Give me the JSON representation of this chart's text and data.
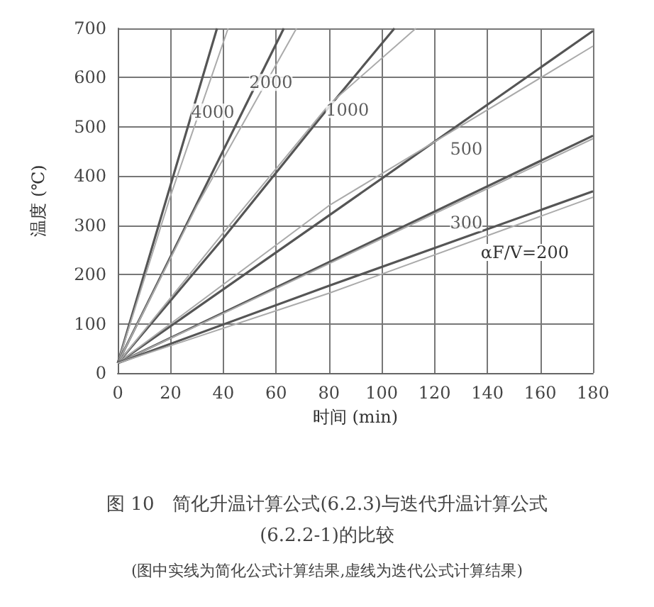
{
  "chart_data": {
    "type": "line",
    "title": "图 10　简化升温计算公式(6.2.3)与迭代升温计算公式(6.2.2-1)的比较",
    "subtitle": "(图中实线为简化公式计算结果,虚线为迭代公式计算结果)",
    "xlabel": "时间 (min)",
    "ylabel": "温度 (℃)",
    "xlim": [
      0,
      180
    ],
    "ylim": [
      0,
      700
    ],
    "xticks": [
      0,
      20,
      40,
      60,
      80,
      100,
      120,
      140,
      160,
      180
    ],
    "yticks": [
      0,
      100,
      200,
      300,
      400,
      500,
      600,
      700
    ],
    "grid": true,
    "marker": "none",
    "series": [
      {
        "color": "#555555",
        "x": [
          0,
          37.6
        ],
        "values": [
          20,
          700
        ]
      },
      {
        "color": "#aaaaaa",
        "x": [
          0,
          20,
          41.8
        ],
        "values": [
          20,
          360,
          700
        ]
      },
      {
        "color": "#555555",
        "x": [
          0,
          62.9
        ],
        "values": [
          20,
          700
        ]
      },
      {
        "color": "#aaaaaa",
        "x": [
          0,
          30,
          67.7
        ],
        "values": [
          20,
          340,
          700
        ]
      },
      {
        "color": "#555555",
        "x": [
          0,
          40,
          80,
          104.8
        ],
        "values": [
          20,
          274,
          540,
          700
        ]
      },
      {
        "color": "#aaaaaa",
        "x": [
          0,
          40,
          80,
          112.9
        ],
        "values": [
          20,
          285,
          545,
          700
        ]
      },
      {
        "color": "#555555",
        "x": [
          0,
          80,
          180
        ],
        "values": [
          20,
          320,
          695
        ]
      },
      {
        "color": "#aaaaaa",
        "x": [
          0,
          80,
          180
        ],
        "values": [
          20,
          340,
          664
        ]
      },
      {
        "color": "#555555",
        "x": [
          0,
          80,
          180
        ],
        "values": [
          20,
          225,
          482
        ]
      },
      {
        "color": "#aaaaaa",
        "x": [
          0,
          80,
          180
        ],
        "values": [
          20,
          222,
          476
        ]
      },
      {
        "color": "#555555",
        "x": [
          0,
          80,
          180
        ],
        "values": [
          20,
          177,
          369
        ]
      },
      {
        "color": "#aaaaaa",
        "x": [
          0,
          80,
          180
        ],
        "values": [
          20,
          162,
          357
        ]
      }
    ],
    "annotations": [
      {
        "text": "4000",
        "x": 36,
        "y": 530
      },
      {
        "text": "2000",
        "x": 58,
        "y": 590
      },
      {
        "text": "1000",
        "x": 87,
        "y": 535
      },
      {
        "text": "500",
        "x": 132,
        "y": 455
      },
      {
        "text": "300",
        "x": 132,
        "y": 305
      },
      "αF/V=200"
    ]
  }
}
